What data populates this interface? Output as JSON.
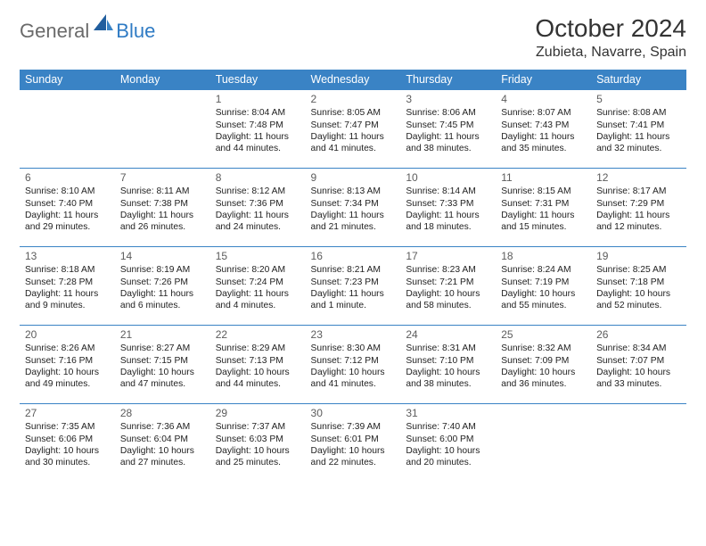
{
  "logo": {
    "general": "General",
    "blue": "Blue"
  },
  "title": "October 2024",
  "location": "Zubieta, Navarre, Spain",
  "colors": {
    "header_bg": "#3a83c5",
    "header_text": "#ffffff",
    "cell_border": "#3a83c5",
    "text": "#222222",
    "logo_gray": "#6a6a6a",
    "logo_blue": "#2f7bc4"
  },
  "days_of_week": [
    "Sunday",
    "Monday",
    "Tuesday",
    "Wednesday",
    "Thursday",
    "Friday",
    "Saturday"
  ],
  "weeks": [
    [
      null,
      null,
      {
        "n": "1",
        "sr": "Sunrise: 8:04 AM",
        "ss": "Sunset: 7:48 PM",
        "dl": "Daylight: 11 hours and 44 minutes."
      },
      {
        "n": "2",
        "sr": "Sunrise: 8:05 AM",
        "ss": "Sunset: 7:47 PM",
        "dl": "Daylight: 11 hours and 41 minutes."
      },
      {
        "n": "3",
        "sr": "Sunrise: 8:06 AM",
        "ss": "Sunset: 7:45 PM",
        "dl": "Daylight: 11 hours and 38 minutes."
      },
      {
        "n": "4",
        "sr": "Sunrise: 8:07 AM",
        "ss": "Sunset: 7:43 PM",
        "dl": "Daylight: 11 hours and 35 minutes."
      },
      {
        "n": "5",
        "sr": "Sunrise: 8:08 AM",
        "ss": "Sunset: 7:41 PM",
        "dl": "Daylight: 11 hours and 32 minutes."
      }
    ],
    [
      {
        "n": "6",
        "sr": "Sunrise: 8:10 AM",
        "ss": "Sunset: 7:40 PM",
        "dl": "Daylight: 11 hours and 29 minutes."
      },
      {
        "n": "7",
        "sr": "Sunrise: 8:11 AM",
        "ss": "Sunset: 7:38 PM",
        "dl": "Daylight: 11 hours and 26 minutes."
      },
      {
        "n": "8",
        "sr": "Sunrise: 8:12 AM",
        "ss": "Sunset: 7:36 PM",
        "dl": "Daylight: 11 hours and 24 minutes."
      },
      {
        "n": "9",
        "sr": "Sunrise: 8:13 AM",
        "ss": "Sunset: 7:34 PM",
        "dl": "Daylight: 11 hours and 21 minutes."
      },
      {
        "n": "10",
        "sr": "Sunrise: 8:14 AM",
        "ss": "Sunset: 7:33 PM",
        "dl": "Daylight: 11 hours and 18 minutes."
      },
      {
        "n": "11",
        "sr": "Sunrise: 8:15 AM",
        "ss": "Sunset: 7:31 PM",
        "dl": "Daylight: 11 hours and 15 minutes."
      },
      {
        "n": "12",
        "sr": "Sunrise: 8:17 AM",
        "ss": "Sunset: 7:29 PM",
        "dl": "Daylight: 11 hours and 12 minutes."
      }
    ],
    [
      {
        "n": "13",
        "sr": "Sunrise: 8:18 AM",
        "ss": "Sunset: 7:28 PM",
        "dl": "Daylight: 11 hours and 9 minutes."
      },
      {
        "n": "14",
        "sr": "Sunrise: 8:19 AM",
        "ss": "Sunset: 7:26 PM",
        "dl": "Daylight: 11 hours and 6 minutes."
      },
      {
        "n": "15",
        "sr": "Sunrise: 8:20 AM",
        "ss": "Sunset: 7:24 PM",
        "dl": "Daylight: 11 hours and 4 minutes."
      },
      {
        "n": "16",
        "sr": "Sunrise: 8:21 AM",
        "ss": "Sunset: 7:23 PM",
        "dl": "Daylight: 11 hours and 1 minute."
      },
      {
        "n": "17",
        "sr": "Sunrise: 8:23 AM",
        "ss": "Sunset: 7:21 PM",
        "dl": "Daylight: 10 hours and 58 minutes."
      },
      {
        "n": "18",
        "sr": "Sunrise: 8:24 AM",
        "ss": "Sunset: 7:19 PM",
        "dl": "Daylight: 10 hours and 55 minutes."
      },
      {
        "n": "19",
        "sr": "Sunrise: 8:25 AM",
        "ss": "Sunset: 7:18 PM",
        "dl": "Daylight: 10 hours and 52 minutes."
      }
    ],
    [
      {
        "n": "20",
        "sr": "Sunrise: 8:26 AM",
        "ss": "Sunset: 7:16 PM",
        "dl": "Daylight: 10 hours and 49 minutes."
      },
      {
        "n": "21",
        "sr": "Sunrise: 8:27 AM",
        "ss": "Sunset: 7:15 PM",
        "dl": "Daylight: 10 hours and 47 minutes."
      },
      {
        "n": "22",
        "sr": "Sunrise: 8:29 AM",
        "ss": "Sunset: 7:13 PM",
        "dl": "Daylight: 10 hours and 44 minutes."
      },
      {
        "n": "23",
        "sr": "Sunrise: 8:30 AM",
        "ss": "Sunset: 7:12 PM",
        "dl": "Daylight: 10 hours and 41 minutes."
      },
      {
        "n": "24",
        "sr": "Sunrise: 8:31 AM",
        "ss": "Sunset: 7:10 PM",
        "dl": "Daylight: 10 hours and 38 minutes."
      },
      {
        "n": "25",
        "sr": "Sunrise: 8:32 AM",
        "ss": "Sunset: 7:09 PM",
        "dl": "Daylight: 10 hours and 36 minutes."
      },
      {
        "n": "26",
        "sr": "Sunrise: 8:34 AM",
        "ss": "Sunset: 7:07 PM",
        "dl": "Daylight: 10 hours and 33 minutes."
      }
    ],
    [
      {
        "n": "27",
        "sr": "Sunrise: 7:35 AM",
        "ss": "Sunset: 6:06 PM",
        "dl": "Daylight: 10 hours and 30 minutes."
      },
      {
        "n": "28",
        "sr": "Sunrise: 7:36 AM",
        "ss": "Sunset: 6:04 PM",
        "dl": "Daylight: 10 hours and 27 minutes."
      },
      {
        "n": "29",
        "sr": "Sunrise: 7:37 AM",
        "ss": "Sunset: 6:03 PM",
        "dl": "Daylight: 10 hours and 25 minutes."
      },
      {
        "n": "30",
        "sr": "Sunrise: 7:39 AM",
        "ss": "Sunset: 6:01 PM",
        "dl": "Daylight: 10 hours and 22 minutes."
      },
      {
        "n": "31",
        "sr": "Sunrise: 7:40 AM",
        "ss": "Sunset: 6:00 PM",
        "dl": "Daylight: 10 hours and 20 minutes."
      },
      null,
      null
    ]
  ]
}
